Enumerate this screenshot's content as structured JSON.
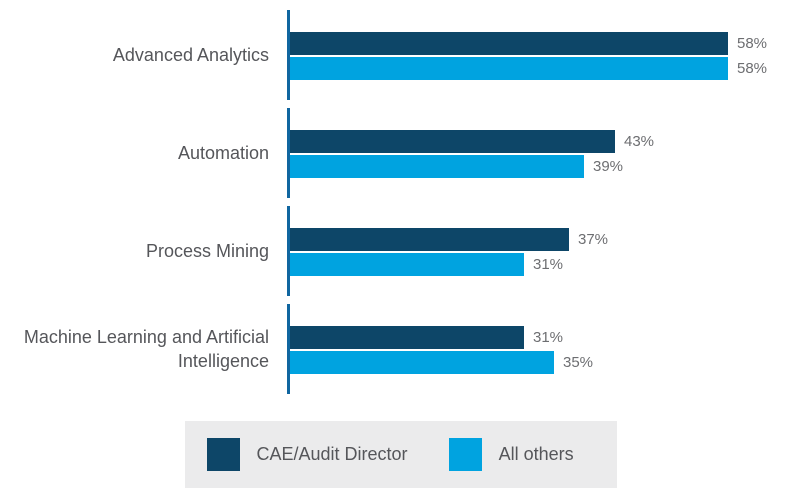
{
  "chart_data": {
    "type": "bar",
    "orientation": "horizontal",
    "title": "",
    "xlabel": "",
    "ylabel": "",
    "xlim": [
      0,
      62
    ],
    "grid": false,
    "axis_style": "segmented-vertical-baseline",
    "axis_color": "#1066a0",
    "category_label_color": "#55565a",
    "value_label_color": "#6d6e71",
    "categories": [
      "Advanced Analytics",
      "Automation",
      "Process Mining",
      "Machine Learning and Artificial Intelligence"
    ],
    "series": [
      {
        "name": "CAE/Audit Director",
        "color": "#0d4668",
        "values": [
          58,
          43,
          37,
          31
        ],
        "labels": [
          "58%",
          "43%",
          "37%",
          "31%"
        ]
      },
      {
        "name": "All others",
        "color": "#00a3e0",
        "values": [
          58,
          39,
          31,
          35
        ],
        "labels": [
          "58%",
          "39%",
          "31%",
          "35%"
        ]
      }
    ],
    "legend_position": "bottom"
  },
  "legend": {
    "background": "#ebebec",
    "items": [
      {
        "label": "CAE/Audit Director",
        "color": "#0d4668"
      },
      {
        "label": "All others",
        "color": "#00a3e0"
      }
    ]
  }
}
